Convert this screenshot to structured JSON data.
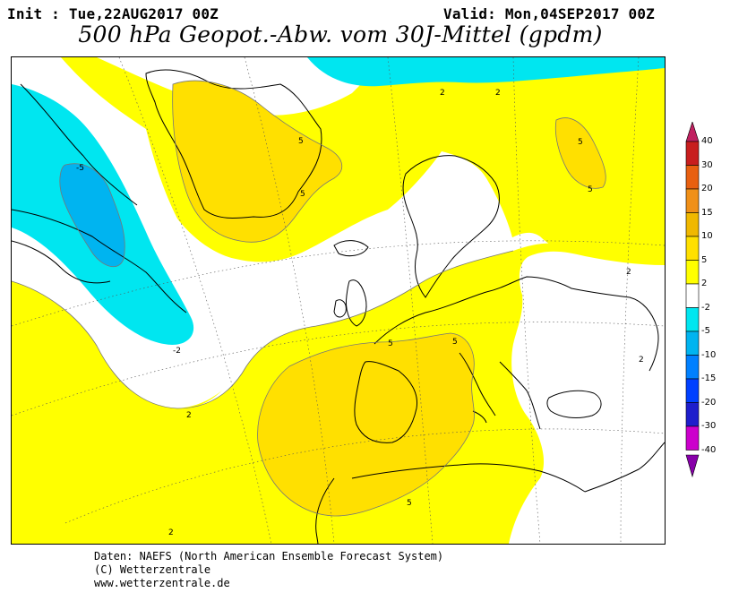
{
  "header": {
    "init": "Init : Tue,22AUG2017 00Z",
    "valid": "Valid: Mon,04SEP2017 00Z",
    "title": "500 hPa Geopot.-Abw. vom 30J-Mittel (gpdm)"
  },
  "legend": {
    "labels": [
      "40",
      "30",
      "20",
      "15",
      "10",
      "5",
      "2",
      "-2",
      "-5",
      "-10",
      "-15",
      "-20",
      "-30",
      "-40"
    ],
    "colors": [
      "#c02060",
      "#c81e1e",
      "#e86010",
      "#f09018",
      "#f0b800",
      "#ffe000",
      "#ffff00",
      "#ffffff",
      "#00e6f0",
      "#00b4f0",
      "#0080ff",
      "#0040ff",
      "#1e1ecc",
      "#cc00cc",
      "#8800aa"
    ]
  },
  "map": {
    "contour_labels": [
      "-5",
      "-2",
      "2",
      "5"
    ],
    "colors": {
      "positive_2_5": "#ffff00",
      "positive_5_10": "#ffe000",
      "negative_2_5": "#00e6f0",
      "negative_5_10": "#00b4f0",
      "neutral": "#ffffff",
      "coast": "#000000",
      "graticule": "#555555"
    }
  },
  "footer": {
    "line1": "Daten: NAEFS (North American Ensemble Forecast System)",
    "line2": "(C) Wetterzentrale",
    "line3": "www.wetterzentrale.de"
  }
}
